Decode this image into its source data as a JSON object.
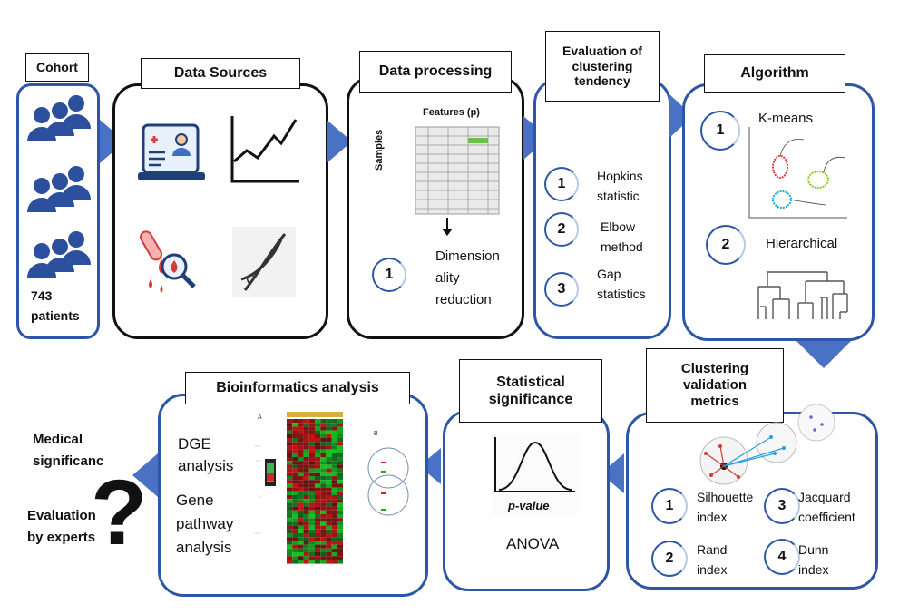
{
  "cohort": {
    "title": "Cohort",
    "count": "743",
    "unit": "patients"
  },
  "data_sources": {
    "title": "Data Sources"
  },
  "data_processing": {
    "title": "Data processing",
    "features_label": "Features (p)",
    "samples_label": "Samples",
    "steps": [
      {
        "num": "1",
        "label_lines": [
          "Dimension",
          "ality",
          "reduction"
        ]
      }
    ]
  },
  "clustering_tendency": {
    "title_lines": [
      "Evaluation of",
      "clustering",
      "tendency"
    ],
    "steps": [
      {
        "num": "1",
        "label_lines": [
          "Hopkins",
          "statistic"
        ]
      },
      {
        "num": "2",
        "label_lines": [
          "Elbow",
          "method"
        ]
      },
      {
        "num": "3",
        "label_lines": [
          "Gap",
          "statistics"
        ]
      }
    ]
  },
  "algorithm": {
    "title": "Algorithm",
    "steps": [
      {
        "num": "1",
        "label": "K-means"
      },
      {
        "num": "2",
        "label": "Hierarchical"
      }
    ]
  },
  "validation": {
    "title_lines": [
      "Clustering",
      "validation",
      "metrics"
    ],
    "metrics": [
      {
        "num": "1",
        "label_lines": [
          "Silhouette",
          "index"
        ]
      },
      {
        "num": "3",
        "label_lines": [
          "Jacquard",
          "coefficient"
        ]
      },
      {
        "num": "2",
        "label_lines": [
          "Rand",
          "index"
        ]
      },
      {
        "num": "4",
        "label_lines": [
          "Dunn",
          "index"
        ]
      }
    ]
  },
  "statistical": {
    "title_lines": [
      "Statistical",
      "significance"
    ],
    "pvalue_label": "p-value",
    "test": "ANOVA"
  },
  "bioinformatics": {
    "title": "Bioinformatics analysis",
    "items": [
      {
        "lines": [
          "DGE",
          "analysis"
        ]
      },
      {
        "lines": [
          "Gene",
          "pathway",
          "analysis"
        ]
      }
    ]
  },
  "medical": {
    "line1": "Medical",
    "line2": "significanc",
    "line3": "Evaluation",
    "line4": "by experts",
    "glyph": "?"
  },
  "colors": {
    "accent": "#2e56a6",
    "arrow": "#4a72c4",
    "icon": "#2c4f9e"
  }
}
